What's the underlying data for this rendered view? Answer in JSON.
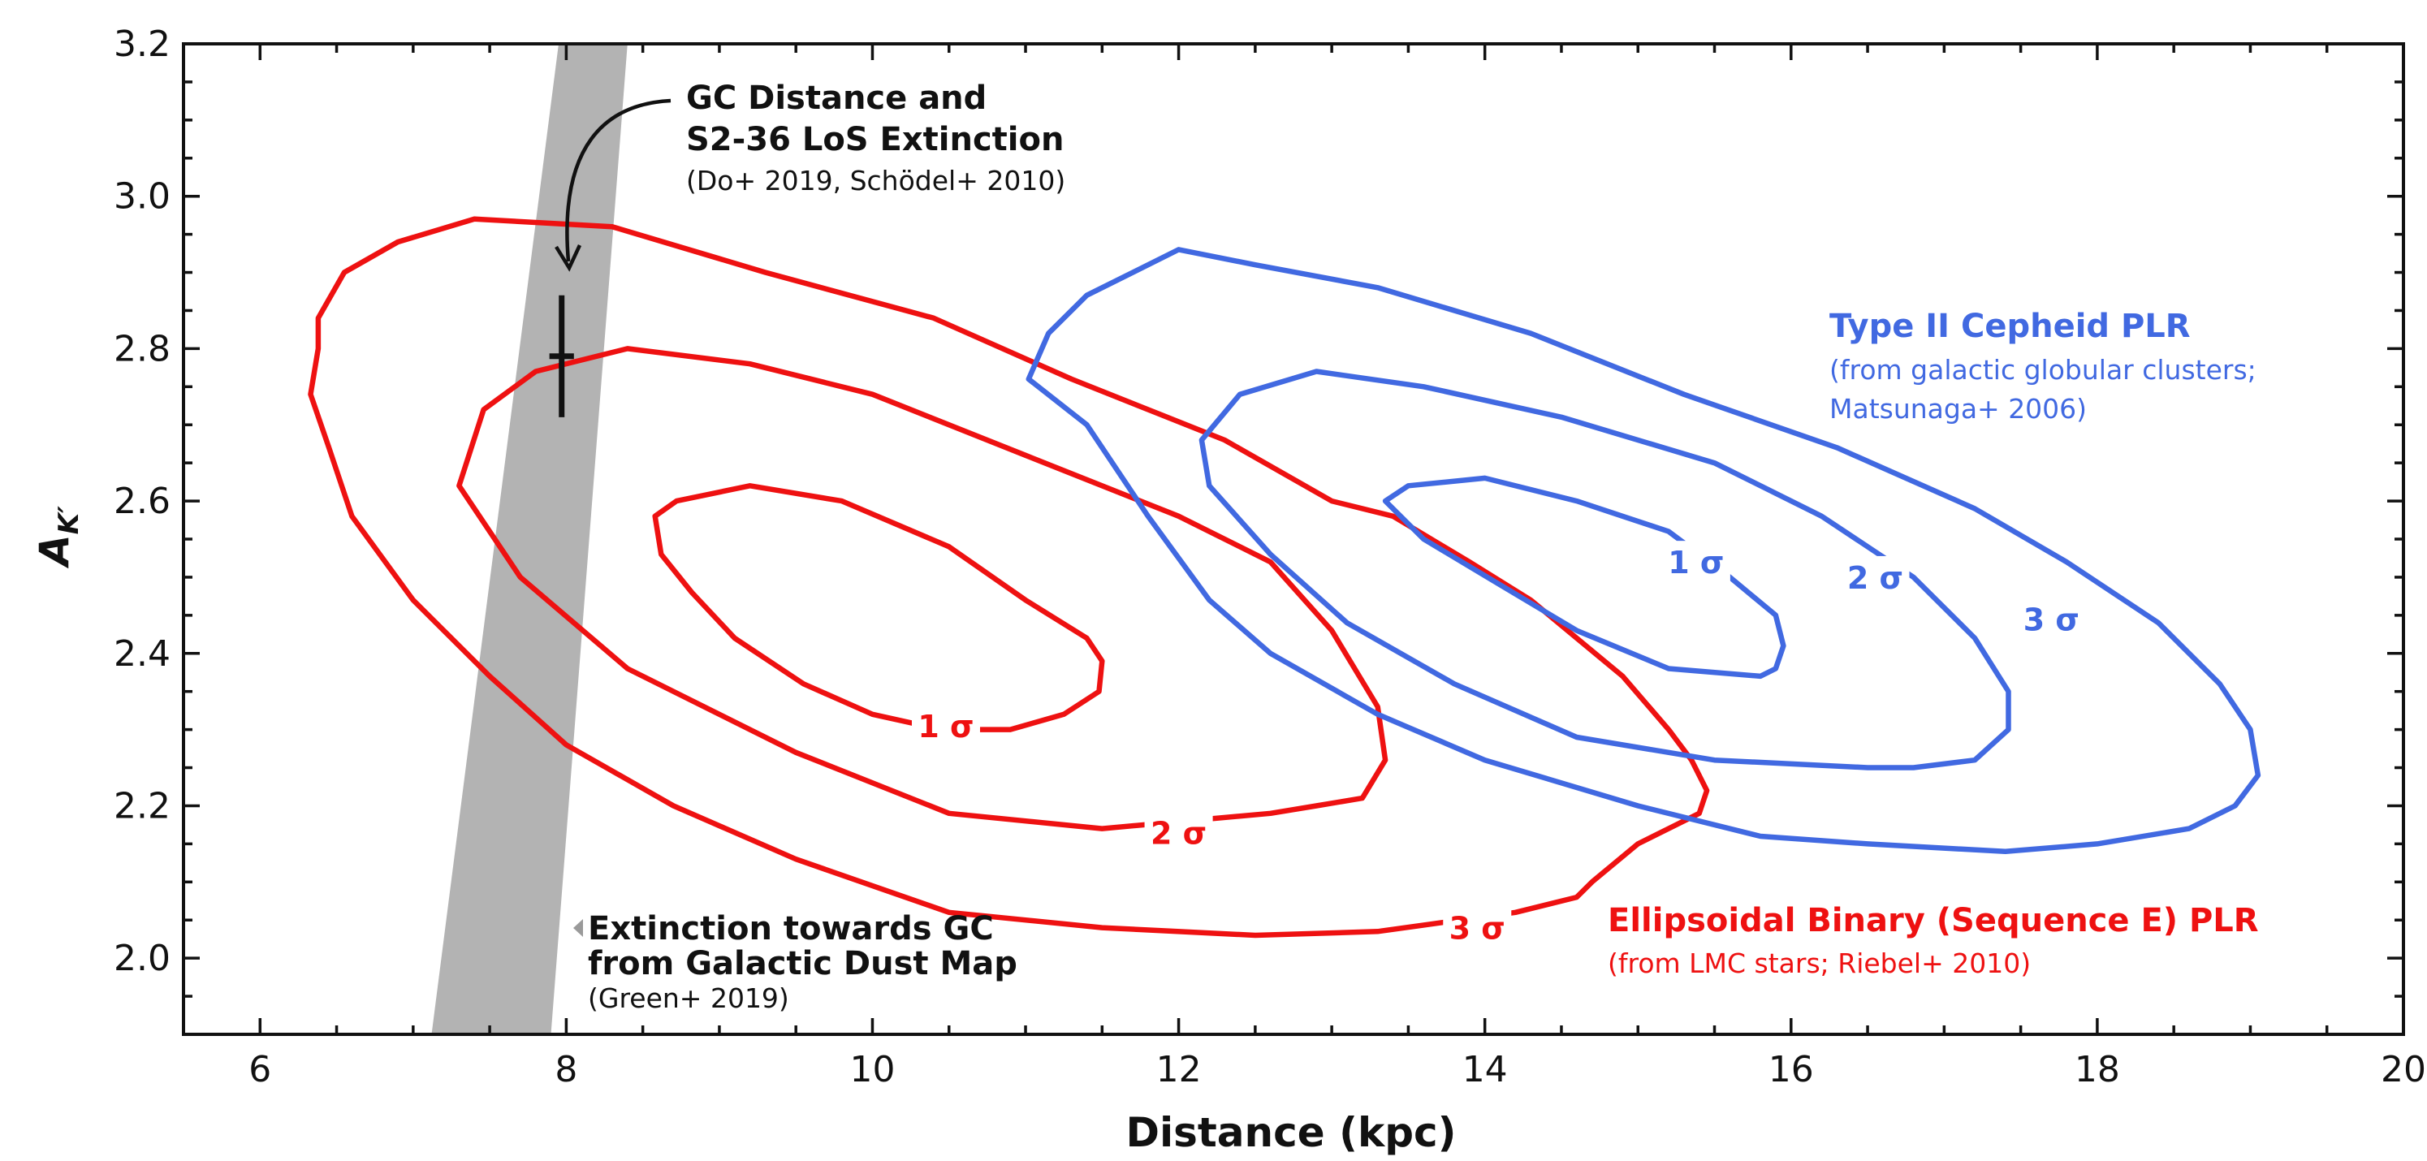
{
  "chart_data": {
    "type": "contour",
    "xlabel": "Distance (kpc)",
    "ylabel": "A",
    "ylabel_subscript": "K′",
    "xlim": [
      5.5,
      20
    ],
    "ylim": [
      1.9,
      3.2
    ],
    "xticks": [
      6,
      8,
      10,
      12,
      14,
      16,
      18,
      20
    ],
    "yticks": [
      2.0,
      2.2,
      2.4,
      2.6,
      2.8,
      3.0,
      3.2
    ],
    "xtick_labels": [
      "6",
      "8",
      "10",
      "12",
      "14",
      "16",
      "18",
      "20"
    ],
    "ytick_labels": [
      "2.0",
      "2.2",
      "2.4",
      "2.6",
      "2.8",
      "3.0",
      "3.2"
    ],
    "grid": false,
    "colors": {
      "red": "#ee1111",
      "blue": "#4169e1",
      "band": "#b3b3b3",
      "ink": "#111111"
    },
    "measurement": {
      "x": 7.97,
      "y": 2.79,
      "yerr_low": 0.08,
      "yerr_high": 0.08,
      "xerr": 0.08
    },
    "extinction_band": {
      "left_edge": [
        [
          7.12,
          1.9
        ],
        [
          7.95,
          3.2
        ]
      ],
      "right_edge": [
        [
          7.9,
          1.9
        ],
        [
          8.4,
          3.2
        ]
      ]
    },
    "series": [
      {
        "name": "Ellipsoidal Binary (Sequence E) PLR",
        "color": "#ee1111",
        "contours": [
          {
            "level": "1 σ",
            "label": "1 σ",
            "label_at": [
              10.48,
              2.305
            ],
            "points": [
              [
                10.0,
                2.32
              ],
              [
                9.55,
                2.36
              ],
              [
                9.1,
                2.42
              ],
              [
                8.82,
                2.48
              ],
              [
                8.62,
                2.53
              ],
              [
                8.58,
                2.58
              ],
              [
                8.72,
                2.6
              ],
              [
                9.2,
                2.62
              ],
              [
                9.8,
                2.6
              ],
              [
                10.5,
                2.54
              ],
              [
                11.0,
                2.47
              ],
              [
                11.4,
                2.42
              ],
              [
                11.5,
                2.39
              ],
              [
                11.48,
                2.35
              ],
              [
                11.25,
                2.32
              ],
              [
                10.9,
                2.3
              ],
              [
                10.45,
                2.3
              ],
              [
                10.0,
                2.32
              ]
            ]
          },
          {
            "level": "2 σ",
            "label": "2 σ",
            "label_at": [
              12.0,
              2.165
            ],
            "points": [
              [
                12.6,
                2.19
              ],
              [
                11.5,
                2.17
              ],
              [
                10.5,
                2.19
              ],
              [
                9.5,
                2.27
              ],
              [
                8.4,
                2.38
              ],
              [
                7.7,
                2.5
              ],
              [
                7.3,
                2.62
              ],
              [
                7.46,
                2.72
              ],
              [
                7.8,
                2.77
              ],
              [
                8.4,
                2.8
              ],
              [
                9.2,
                2.78
              ],
              [
                10.0,
                2.74
              ],
              [
                11.0,
                2.66
              ],
              [
                12.0,
                2.58
              ],
              [
                12.6,
                2.52
              ],
              [
                13.0,
                2.43
              ],
              [
                13.3,
                2.33
              ],
              [
                13.35,
                2.26
              ],
              [
                13.2,
                2.21
              ],
              [
                12.9,
                2.2
              ],
              [
                12.6,
                2.19
              ]
            ]
          },
          {
            "level": "3 σ",
            "label": "3 σ",
            "label_at": [
              13.95,
              2.04
            ],
            "points": [
              [
                14.6,
                2.08
              ],
              [
                14.2,
                2.06
              ],
              [
                13.3,
                2.035
              ],
              [
                12.5,
                2.03
              ],
              [
                11.5,
                2.04
              ],
              [
                10.5,
                2.06
              ],
              [
                9.5,
                2.13
              ],
              [
                8.7,
                2.2
              ],
              [
                8.0,
                2.28
              ],
              [
                7.5,
                2.37
              ],
              [
                7.0,
                2.47
              ],
              [
                6.6,
                2.58
              ],
              [
                6.45,
                2.67
              ],
              [
                6.33,
                2.74
              ],
              [
                6.38,
                2.8
              ],
              [
                6.38,
                2.84
              ],
              [
                6.55,
                2.9
              ],
              [
                6.9,
                2.94
              ],
              [
                7.4,
                2.97
              ],
              [
                8.3,
                2.96
              ],
              [
                9.3,
                2.9
              ],
              [
                10.4,
                2.84
              ],
              [
                11.3,
                2.76
              ],
              [
                12.3,
                2.68
              ],
              [
                13.0,
                2.6
              ],
              [
                13.4,
                2.58
              ],
              [
                13.9,
                2.52
              ],
              [
                14.3,
                2.47
              ],
              [
                14.6,
                2.42
              ],
              [
                14.9,
                2.37
              ],
              [
                15.2,
                2.3
              ],
              [
                15.35,
                2.26
              ],
              [
                15.45,
                2.22
              ],
              [
                15.4,
                2.19
              ],
              [
                15.0,
                2.15
              ],
              [
                14.7,
                2.1
              ],
              [
                14.6,
                2.08
              ]
            ]
          }
        ]
      },
      {
        "name": "Type II Cepheid PLR",
        "color": "#4169e1",
        "contours": [
          {
            "level": "1 σ",
            "label": "1 σ",
            "label_at": [
              15.38,
              2.52
            ],
            "points": [
              [
                15.8,
                2.37
              ],
              [
                15.2,
                2.38
              ],
              [
                14.6,
                2.43
              ],
              [
                14.1,
                2.49
              ],
              [
                13.6,
                2.55
              ],
              [
                13.35,
                2.6
              ],
              [
                13.5,
                2.62
              ],
              [
                14.0,
                2.63
              ],
              [
                14.6,
                2.6
              ],
              [
                15.2,
                2.56
              ],
              [
                15.6,
                2.5
              ],
              [
                15.9,
                2.45
              ],
              [
                15.95,
                2.41
              ],
              [
                15.9,
                2.38
              ],
              [
                15.8,
                2.37
              ]
            ]
          },
          {
            "level": "2 σ",
            "label": "2 σ",
            "label_at": [
              16.55,
              2.5
            ],
            "points": [
              [
                16.5,
                2.25
              ],
              [
                15.5,
                2.26
              ],
              [
                14.6,
                2.29
              ],
              [
                13.8,
                2.36
              ],
              [
                13.1,
                2.44
              ],
              [
                12.6,
                2.53
              ],
              [
                12.2,
                2.62
              ],
              [
                12.15,
                2.68
              ],
              [
                12.4,
                2.74
              ],
              [
                12.9,
                2.77
              ],
              [
                13.6,
                2.75
              ],
              [
                14.5,
                2.71
              ],
              [
                15.5,
                2.65
              ],
              [
                16.2,
                2.58
              ],
              [
                16.8,
                2.5
              ],
              [
                17.2,
                2.42
              ],
              [
                17.42,
                2.35
              ],
              [
                17.42,
                2.3
              ],
              [
                17.2,
                2.26
              ],
              [
                16.8,
                2.25
              ],
              [
                16.5,
                2.25
              ]
            ]
          },
          {
            "level": "3 σ",
            "label": "3 σ",
            "label_at": [
              17.7,
              2.445
            ],
            "points": [
              [
                17.4,
                2.14
              ],
              [
                16.5,
                2.15
              ],
              [
                15.8,
                2.16
              ],
              [
                15.0,
                2.2
              ],
              [
                14.0,
                2.26
              ],
              [
                13.3,
                2.32
              ],
              [
                12.6,
                2.4
              ],
              [
                12.2,
                2.47
              ],
              [
                11.8,
                2.58
              ],
              [
                11.4,
                2.7
              ],
              [
                11.02,
                2.76
              ],
              [
                11.15,
                2.82
              ],
              [
                11.4,
                2.87
              ],
              [
                12.0,
                2.93
              ],
              [
                12.5,
                2.91
              ],
              [
                13.3,
                2.88
              ],
              [
                14.3,
                2.82
              ],
              [
                15.3,
                2.74
              ],
              [
                16.3,
                2.67
              ],
              [
                17.2,
                2.59
              ],
              [
                17.8,
                2.52
              ],
              [
                18.4,
                2.44
              ],
              [
                18.8,
                2.36
              ],
              [
                19.0,
                2.3
              ],
              [
                19.05,
                2.24
              ],
              [
                18.9,
                2.2
              ],
              [
                18.6,
                2.17
              ],
              [
                18.0,
                2.15
              ],
              [
                17.4,
                2.14
              ]
            ]
          }
        ]
      }
    ],
    "annotations": {
      "gc": {
        "title_lines": [
          "GC Distance and",
          "S2-36 LoS Extinction"
        ],
        "sub": "(Do+ 2019, Schödel+ 2010)"
      },
      "band": {
        "title_lines": [
          "Extinction towards GC",
          "from Galactic Dust Map"
        ],
        "sub": "(Green+ 2019)"
      },
      "cepheid": {
        "title": "Type II Cepheid PLR",
        "sub_lines": [
          "(from galactic globular clusters;",
          "Matsunaga+ 2006)"
        ]
      },
      "ebinary": {
        "title": "Ellipsoidal Binary (Sequence E) PLR",
        "sub": "(from LMC stars; Riebel+ 2010)"
      }
    }
  }
}
